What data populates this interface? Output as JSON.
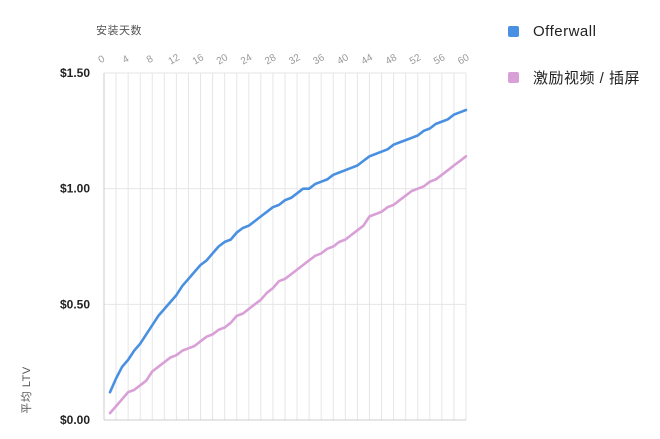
{
  "chart_data": {
    "type": "line",
    "xlabel": "安装天数",
    "ylabel": "平均 LTV",
    "xlim": [
      0,
      60
    ],
    "ylim": [
      0,
      1.5
    ],
    "x_ticks": [
      "0",
      "4",
      "8",
      "12",
      "16",
      "20",
      "24",
      "28",
      "32",
      "36",
      "40",
      "44",
      "48",
      "52",
      "56",
      "60"
    ],
    "y_ticks": [
      {
        "value": 0,
        "label": "$0.00"
      },
      {
        "value": 0.5,
        "label": "$0.50"
      },
      {
        "value": 1.0,
        "label": "$1.00"
      },
      {
        "value": 1.5,
        "label": "$1.50"
      }
    ],
    "grid": true,
    "legend_position": "right",
    "x": [
      1,
      2,
      3,
      4,
      5,
      6,
      7,
      8,
      9,
      10,
      11,
      12,
      13,
      14,
      15,
      16,
      17,
      18,
      19,
      20,
      21,
      22,
      23,
      24,
      25,
      26,
      27,
      28,
      29,
      30,
      31,
      32,
      33,
      34,
      35,
      36,
      37,
      38,
      39,
      40,
      41,
      42,
      43,
      44,
      45,
      46,
      47,
      48,
      49,
      50,
      51,
      52,
      53,
      54,
      55,
      56,
      57,
      58,
      59,
      60
    ],
    "series": [
      {
        "name": "Offerwall",
        "color": "#4a90e2",
        "values": [
          0.12,
          0.18,
          0.23,
          0.26,
          0.3,
          0.33,
          0.37,
          0.41,
          0.45,
          0.48,
          0.51,
          0.54,
          0.58,
          0.61,
          0.64,
          0.67,
          0.69,
          0.72,
          0.75,
          0.77,
          0.78,
          0.81,
          0.83,
          0.84,
          0.86,
          0.88,
          0.9,
          0.92,
          0.93,
          0.95,
          0.96,
          0.98,
          1.0,
          1.0,
          1.02,
          1.03,
          1.04,
          1.06,
          1.07,
          1.08,
          1.09,
          1.1,
          1.12,
          1.14,
          1.15,
          1.16,
          1.17,
          1.19,
          1.2,
          1.21,
          1.22,
          1.23,
          1.25,
          1.26,
          1.28,
          1.29,
          1.3,
          1.32,
          1.33,
          1.34
        ]
      },
      {
        "name": "激励视频 / 插屏",
        "color": "#d9a0d8",
        "values": [
          0.03,
          0.06,
          0.09,
          0.12,
          0.13,
          0.15,
          0.17,
          0.21,
          0.23,
          0.25,
          0.27,
          0.28,
          0.3,
          0.31,
          0.32,
          0.34,
          0.36,
          0.37,
          0.39,
          0.4,
          0.42,
          0.45,
          0.46,
          0.48,
          0.5,
          0.52,
          0.55,
          0.57,
          0.6,
          0.61,
          0.63,
          0.65,
          0.67,
          0.69,
          0.71,
          0.72,
          0.74,
          0.75,
          0.77,
          0.78,
          0.8,
          0.82,
          0.84,
          0.88,
          0.89,
          0.9,
          0.92,
          0.93,
          0.95,
          0.97,
          0.99,
          1.0,
          1.01,
          1.03,
          1.04,
          1.06,
          1.08,
          1.1,
          1.12,
          1.14
        ]
      }
    ]
  }
}
